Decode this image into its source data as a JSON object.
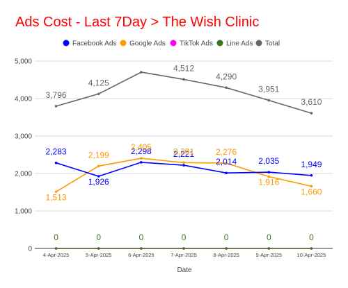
{
  "chart_data": {
    "type": "line",
    "title": "Ads Cost - Last 7Day > The Wish Clinic",
    "title_color": "#ff0000",
    "xlabel": "Date",
    "ylabel": "",
    "ylim": [
      0,
      5000
    ],
    "y_ticks": [
      "0",
      "1,000",
      "2,000",
      "3,000",
      "4,000",
      "5,000"
    ],
    "y_tick_values": [
      0,
      1000,
      2000,
      3000,
      4000,
      5000
    ],
    "grid": true,
    "legend_position": "top",
    "categories": [
      "4-Apr-2025",
      "5-Apr-2025",
      "6-Apr-2025",
      "7-Apr-2025",
      "8-Apr-2025",
      "9-Apr-2025",
      "10-Apr-2025"
    ],
    "series": [
      {
        "name": "Facebook Ads",
        "color": "#0000ff",
        "values": [
          2283,
          1926,
          2298,
          2221,
          2014,
          2035,
          1949
        ],
        "labels": [
          "2,283",
          "1,926",
          "2,298",
          "2,221",
          "2,014",
          "2,035",
          "1,949"
        ]
      },
      {
        "name": "Google Ads",
        "color": "#ff9900",
        "values": [
          1513,
          2199,
          2405,
          2291,
          2276,
          1916,
          1660
        ],
        "labels": [
          "1,513",
          "2,199",
          "2,405",
          "2,291",
          "2,276",
          "1,916",
          "1,660"
        ]
      },
      {
        "name": "TikTok Ads",
        "color": "#ff00ff",
        "values": [
          0,
          0,
          0,
          0,
          0,
          0,
          0
        ],
        "labels": []
      },
      {
        "name": "Line Ads",
        "color": "#38761d",
        "values": [
          0,
          0,
          0,
          0,
          0,
          0,
          0
        ],
        "labels": [
          "0",
          "0",
          "0",
          "0",
          "0",
          "0",
          "0"
        ]
      },
      {
        "name": "Total",
        "color": "#666666",
        "values": [
          3796,
          4125,
          4703,
          4512,
          4290,
          3951,
          3610
        ],
        "labels": [
          "3,796",
          "4,125",
          "",
          "4,512",
          "4,290",
          "3,951",
          "3,610"
        ]
      }
    ]
  }
}
